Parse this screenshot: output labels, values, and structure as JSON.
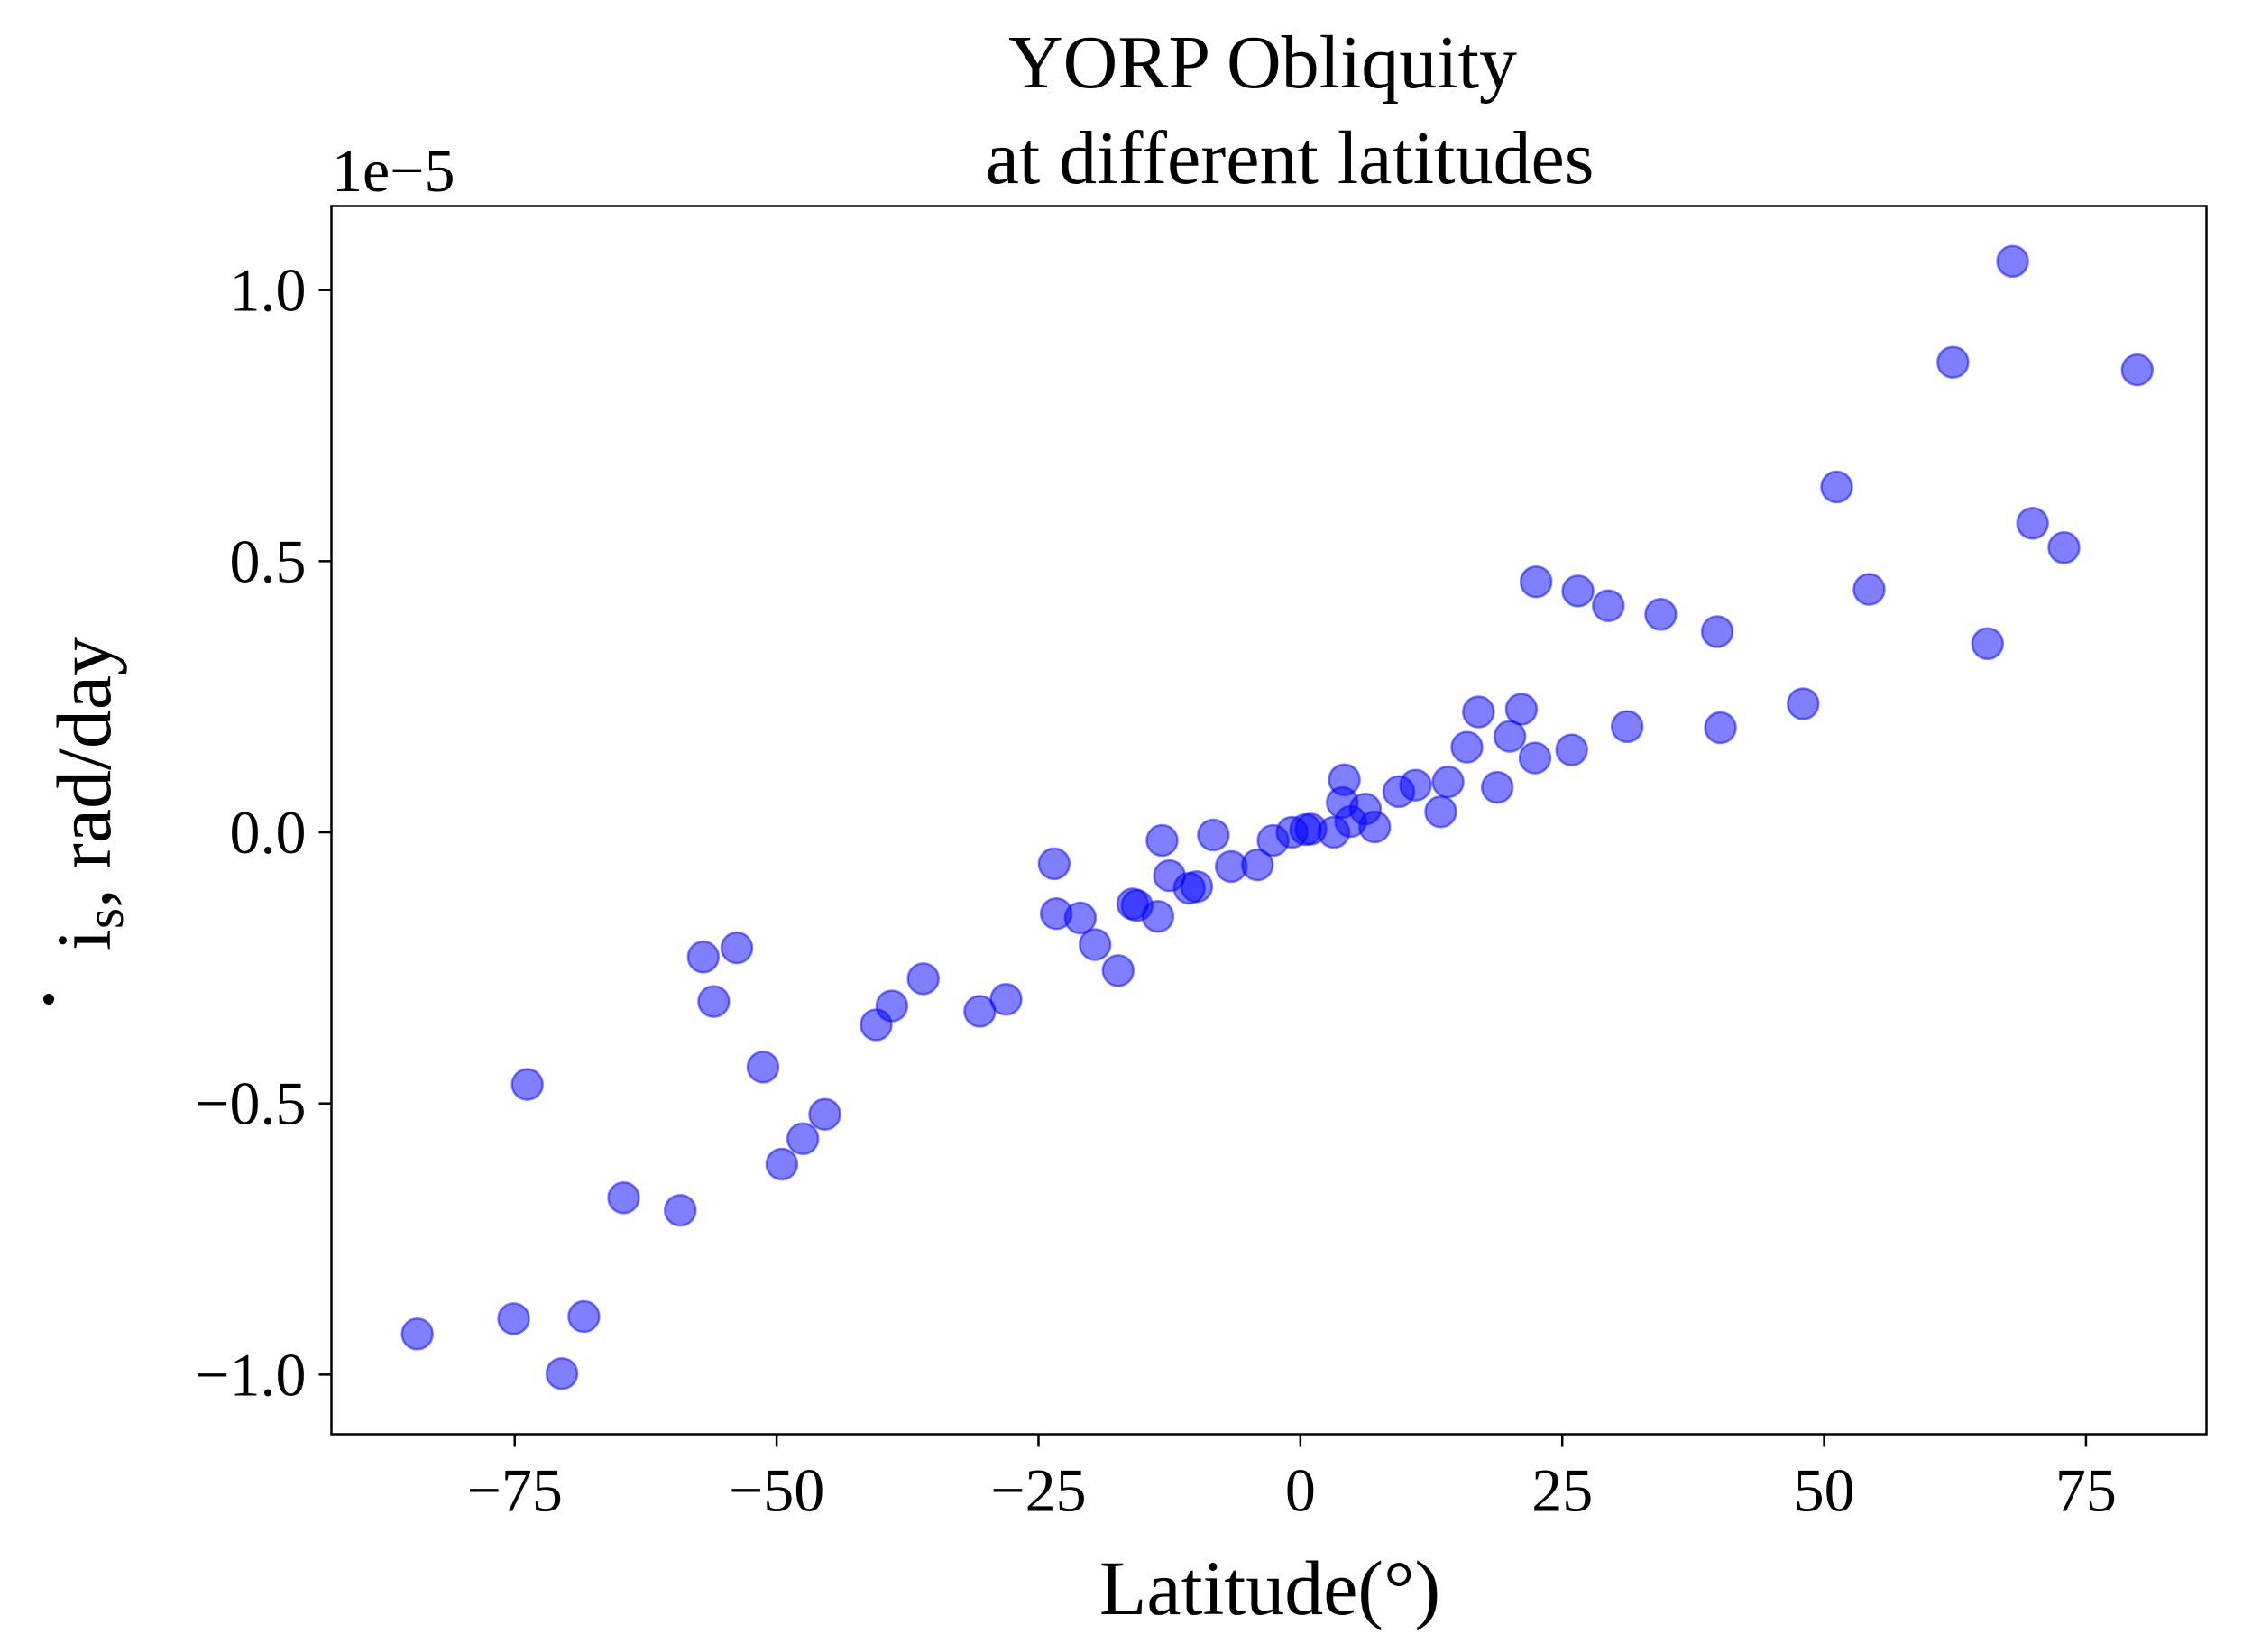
{
  "chart_data": {
    "type": "scatter",
    "title_line1": "YORP Obliquity",
    "title_line2": "at different latitudes",
    "xlabel": "Latitude(°)",
    "ylabel_main": "i",
    "ylabel_sub": "s",
    "ylabel_rest": ", rad/day",
    "y_offset_text": "1e−5",
    "xlim": [
      -92.5,
      86.5
    ],
    "ylim": [
      -1.11,
      1.155
    ],
    "grid": false,
    "marker_color": "#0000ff",
    "marker_alpha": 0.5,
    "x_ticks": [
      -75,
      -50,
      -25,
      0,
      25,
      50,
      75
    ],
    "x_tick_labels": [
      "−75",
      "−50",
      "−25",
      "0",
      "25",
      "50",
      "75"
    ],
    "y_ticks": [
      -1.0,
      -0.5,
      0.0,
      0.5,
      1.0
    ],
    "y_tick_labels": [
      "−1.0",
      "−0.5",
      "0.0",
      "0.5",
      "1.0"
    ],
    "points": [
      {
        "x": -84.3,
        "y": -0.925
      },
      {
        "x": -75.1,
        "y": -0.897
      },
      {
        "x": -73.8,
        "y": -0.465
      },
      {
        "x": -70.5,
        "y": -0.998
      },
      {
        "x": -68.4,
        "y": -0.893
      },
      {
        "x": -64.6,
        "y": -0.674
      },
      {
        "x": -59.2,
        "y": -0.697
      },
      {
        "x": -57.0,
        "y": -0.23
      },
      {
        "x": -56.0,
        "y": -0.312
      },
      {
        "x": -53.8,
        "y": -0.213
      },
      {
        "x": -51.3,
        "y": -0.433
      },
      {
        "x": -49.5,
        "y": -0.612
      },
      {
        "x": -47.5,
        "y": -0.565
      },
      {
        "x": -45.4,
        "y": -0.52
      },
      {
        "x": -40.5,
        "y": -0.355
      },
      {
        "x": -39.0,
        "y": -0.32
      },
      {
        "x": -36.0,
        "y": -0.27
      },
      {
        "x": -30.6,
        "y": -0.33
      },
      {
        "x": -28.1,
        "y": -0.308
      },
      {
        "x": -23.5,
        "y": -0.058
      },
      {
        "x": -23.3,
        "y": -0.15
      },
      {
        "x": -21.0,
        "y": -0.158
      },
      {
        "x": -19.6,
        "y": -0.207
      },
      {
        "x": -17.4,
        "y": -0.255
      },
      {
        "x": -16.0,
        "y": -0.132
      },
      {
        "x": -15.6,
        "y": -0.135
      },
      {
        "x": -13.6,
        "y": -0.155
      },
      {
        "x": -13.2,
        "y": -0.015
      },
      {
        "x": -12.5,
        "y": -0.08
      },
      {
        "x": -10.6,
        "y": -0.103
      },
      {
        "x": -9.9,
        "y": -0.1
      },
      {
        "x": -8.3,
        "y": -0.005
      },
      {
        "x": -6.6,
        "y": -0.063
      },
      {
        "x": -4.1,
        "y": -0.06
      },
      {
        "x": -2.6,
        "y": -0.015
      },
      {
        "x": -0.8,
        "y": 0.0
      },
      {
        "x": 0.5,
        "y": 0.005
      },
      {
        "x": 1.0,
        "y": 0.006
      },
      {
        "x": 3.2,
        "y": 0.0
      },
      {
        "x": 4.0,
        "y": 0.055
      },
      {
        "x": 4.2,
        "y": 0.097
      },
      {
        "x": 4.8,
        "y": 0.02
      },
      {
        "x": 6.2,
        "y": 0.043
      },
      {
        "x": 7.1,
        "y": 0.01
      },
      {
        "x": 9.4,
        "y": 0.075
      },
      {
        "x": 11.0,
        "y": 0.087
      },
      {
        "x": 13.4,
        "y": 0.038
      },
      {
        "x": 14.1,
        "y": 0.093
      },
      {
        "x": 15.9,
        "y": 0.157
      },
      {
        "x": 17.0,
        "y": 0.222
      },
      {
        "x": 18.8,
        "y": 0.083
      },
      {
        "x": 20.0,
        "y": 0.177
      },
      {
        "x": 21.1,
        "y": 0.227
      },
      {
        "x": 22.4,
        "y": 0.137
      },
      {
        "x": 22.5,
        "y": 0.462
      },
      {
        "x": 25.9,
        "y": 0.152
      },
      {
        "x": 26.5,
        "y": 0.445
      },
      {
        "x": 29.4,
        "y": 0.418
      },
      {
        "x": 31.2,
        "y": 0.195
      },
      {
        "x": 34.4,
        "y": 0.402
      },
      {
        "x": 39.8,
        "y": 0.37
      },
      {
        "x": 40.1,
        "y": 0.193
      },
      {
        "x": 48.0,
        "y": 0.237
      },
      {
        "x": 51.2,
        "y": 0.637
      },
      {
        "x": 54.3,
        "y": 0.448
      },
      {
        "x": 62.3,
        "y": 0.867
      },
      {
        "x": 65.6,
        "y": 0.348
      },
      {
        "x": 68.0,
        "y": 1.053
      },
      {
        "x": 69.9,
        "y": 0.57
      },
      {
        "x": 72.9,
        "y": 0.525
      },
      {
        "x": 79.9,
        "y": 0.853
      }
    ]
  }
}
